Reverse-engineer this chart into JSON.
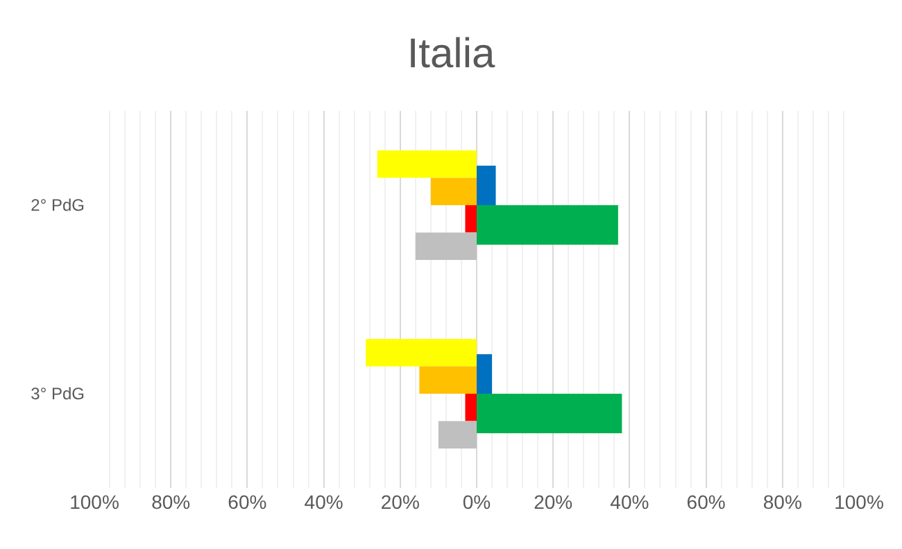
{
  "chart_data": {
    "type": "bar",
    "orientation": "horizontal",
    "title": "Italia",
    "categories": [
      "2° PdG",
      "3° PdG"
    ],
    "series": [
      {
        "color": "#ffff00",
        "values": [
          -26,
          -29
        ]
      },
      {
        "color": "#ffc000",
        "values": [
          -12,
          -15
        ]
      },
      {
        "color": "#ff0000",
        "values": [
          -3,
          -3
        ]
      },
      {
        "color": "#bfbfbf",
        "values": [
          -16,
          -10
        ]
      },
      {
        "color": "#0070c0",
        "values": [
          5,
          4
        ],
        "axis": "y2"
      },
      {
        "color": "#00b050",
        "values": [
          37,
          38
        ],
        "axis": "y2"
      }
    ],
    "xlim": [
      -100,
      100
    ],
    "xticks": [
      {
        "value": -100,
        "label": "100%"
      },
      {
        "value": -80,
        "label": "80%"
      },
      {
        "value": -60,
        "label": "60%"
      },
      {
        "value": -40,
        "label": "40%"
      },
      {
        "value": -20,
        "label": "20%"
      },
      {
        "value": 0,
        "label": "0%"
      },
      {
        "value": 20,
        "label": "20%"
      },
      {
        "value": 40,
        "label": "40%"
      },
      {
        "value": 60,
        "label": "60%"
      },
      {
        "value": 80,
        "label": "80%"
      },
      {
        "value": 100,
        "label": "100%"
      }
    ],
    "grid": "x"
  }
}
